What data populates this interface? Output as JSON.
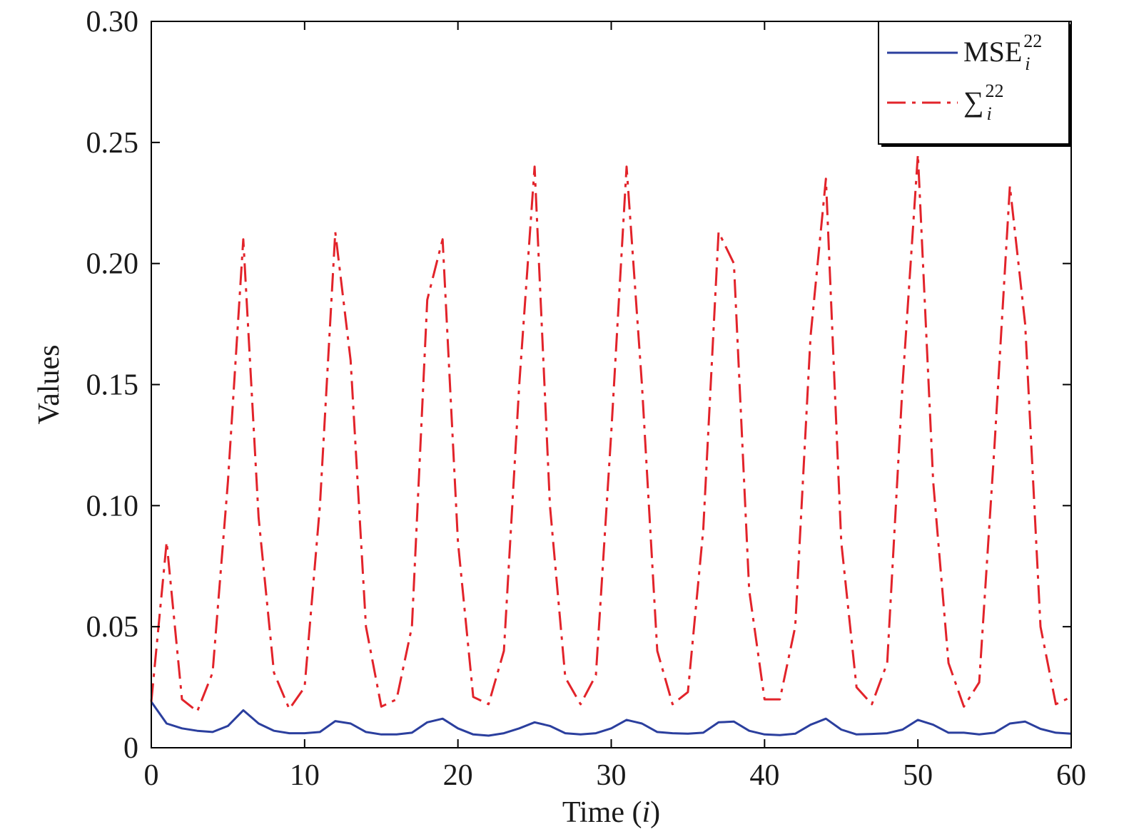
{
  "chart_data": {
    "type": "line",
    "title": "",
    "xlabel": "Time (",
    "xlabel_var": "i",
    "xlabel_close": ")",
    "ylabel": "Values",
    "xlim": [
      0,
      60
    ],
    "ylim": [
      0,
      0.3
    ],
    "xticks": [
      0,
      10,
      20,
      30,
      40,
      50,
      60
    ],
    "xtick_labels": [
      "0",
      "10",
      "20",
      "30",
      "40",
      "50",
      "60"
    ],
    "yticks": [
      0,
      0.05,
      0.1,
      0.15,
      0.2,
      0.25,
      0.3
    ],
    "ytick_labels": [
      "0",
      "0.05",
      "0.10",
      "0.15",
      "0.20",
      "0.25",
      "0.30"
    ],
    "grid": false,
    "legend_position": "top-right",
    "x": [
      0,
      1,
      2,
      3,
      4,
      5,
      6,
      7,
      8,
      9,
      10,
      11,
      12,
      13,
      14,
      15,
      16,
      17,
      18,
      19,
      20,
      21,
      22,
      23,
      24,
      25,
      26,
      27,
      28,
      29,
      30,
      31,
      32,
      33,
      34,
      35,
      36,
      37,
      38,
      39,
      40,
      41,
      42,
      43,
      44,
      45,
      46,
      47,
      48,
      49,
      50,
      51,
      52,
      53,
      54,
      55,
      56,
      57,
      58,
      59,
      60
    ],
    "series": [
      {
        "legend_main": "MSE",
        "legend_sup": "22",
        "legend_sub": "i",
        "color": "#2b3f9e",
        "style": "solid",
        "values": [
          0.019,
          0.01,
          0.008,
          0.007,
          0.0065,
          0.009,
          0.0155,
          0.01,
          0.007,
          0.006,
          0.006,
          0.0065,
          0.011,
          0.01,
          0.0065,
          0.0055,
          0.0055,
          0.0062,
          0.0105,
          0.012,
          0.008,
          0.0055,
          0.005,
          0.006,
          0.008,
          0.0105,
          0.009,
          0.006,
          0.0055,
          0.006,
          0.008,
          0.0115,
          0.01,
          0.0065,
          0.006,
          0.0058,
          0.0062,
          0.0105,
          0.0108,
          0.007,
          0.0055,
          0.0052,
          0.0058,
          0.0095,
          0.012,
          0.0075,
          0.0055,
          0.0057,
          0.006,
          0.0075,
          0.0115,
          0.0095,
          0.0062,
          0.0062,
          0.0055,
          0.0062,
          0.01,
          0.0108,
          0.0078,
          0.0062,
          0.0058
        ]
      },
      {
        "legend_main": "∑",
        "legend_sup": "22",
        "legend_sub": "i",
        "color": "#e2232a",
        "style": "dashdot",
        "values": [
          0.019,
          0.085,
          0.02,
          0.015,
          0.031,
          0.11,
          0.21,
          0.095,
          0.031,
          0.016,
          0.025,
          0.1,
          0.213,
          0.16,
          0.05,
          0.017,
          0.02,
          0.05,
          0.185,
          0.21,
          0.085,
          0.021,
          0.018,
          0.04,
          0.15,
          0.24,
          0.1,
          0.029,
          0.018,
          0.03,
          0.13,
          0.24,
          0.15,
          0.04,
          0.018,
          0.023,
          0.09,
          0.213,
          0.2,
          0.065,
          0.02,
          0.02,
          0.05,
          0.17,
          0.235,
          0.085,
          0.025,
          0.018,
          0.035,
          0.15,
          0.245,
          0.11,
          0.035,
          0.017,
          0.027,
          0.125,
          0.232,
          0.175,
          0.05,
          0.018,
          0.021
        ]
      }
    ]
  }
}
